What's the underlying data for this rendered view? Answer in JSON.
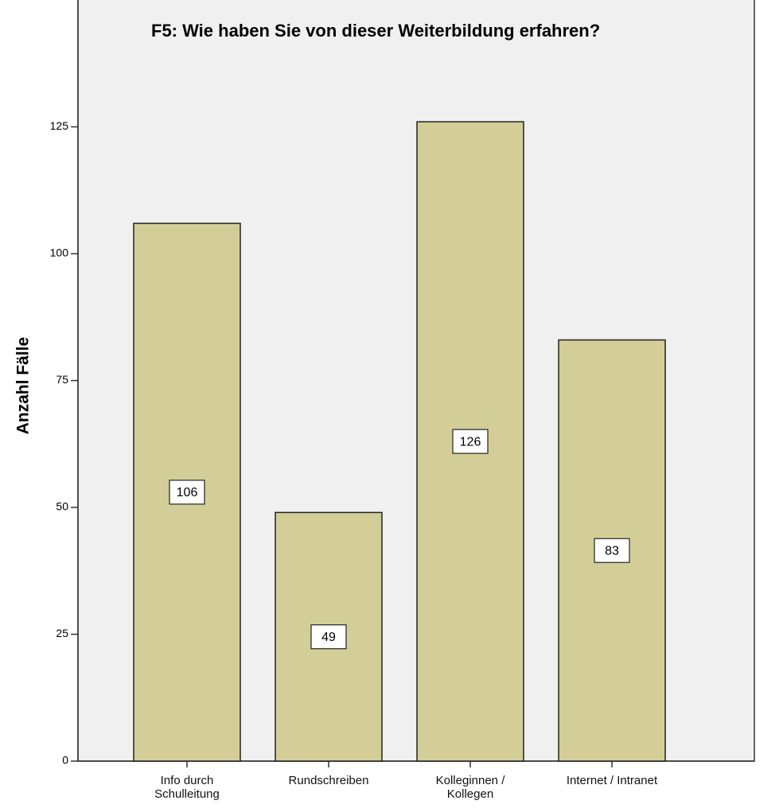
{
  "chart_data": {
    "type": "bar",
    "title": "F5: Wie haben Sie von dieser Weiterbildung erfahren?",
    "y_label": "Anzahl Fälle",
    "categories": [
      "Info durch\nSchulleitung",
      "Rundschreiben",
      "Kolleginnen /\nKollegen",
      "Internet / Intranet"
    ],
    "values": [
      106,
      49,
      126,
      83
    ],
    "color": "#d3ce98",
    "ylim": [
      0,
      150
    ],
    "yticks": [
      0,
      25,
      50,
      75,
      100,
      125
    ],
    "grid": false
  }
}
